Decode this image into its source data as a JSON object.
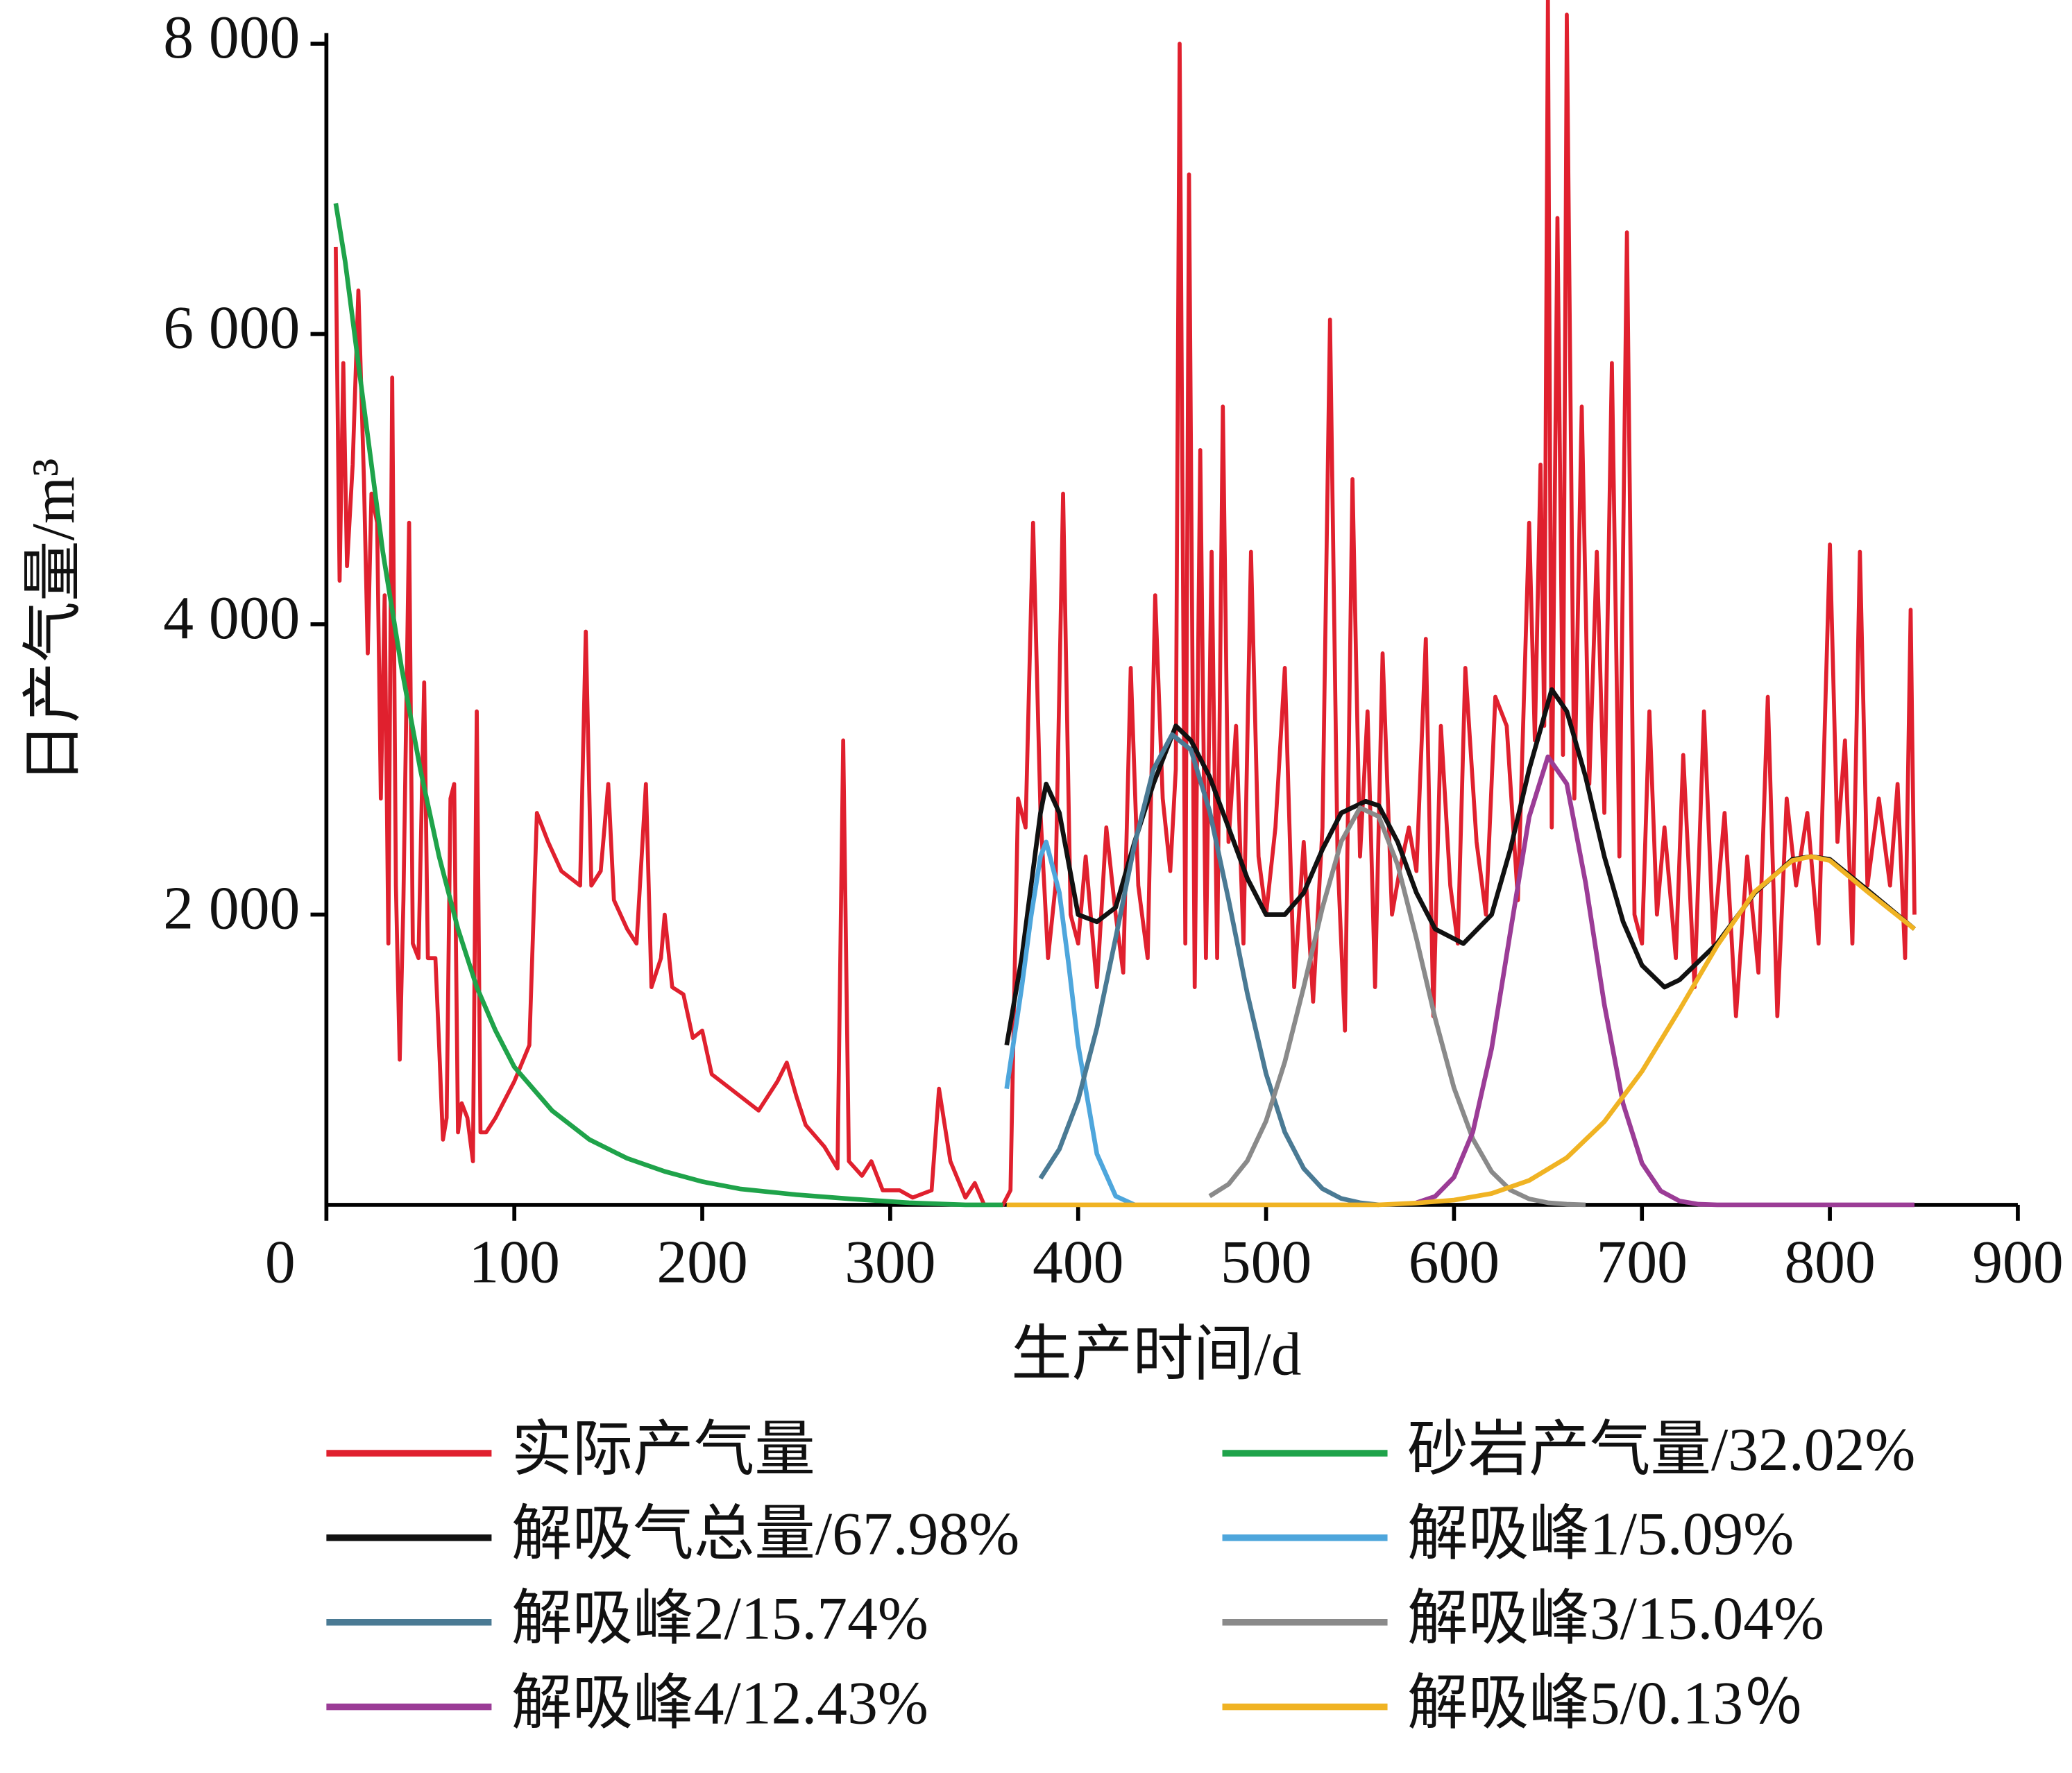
{
  "chart_data": {
    "type": "line",
    "xlabel": "生产时间/d",
    "ylabel": "日产气量/m³",
    "xlim": [
      0,
      900
    ],
    "ylim": [
      0,
      8000
    ],
    "xticks": [
      0,
      100,
      200,
      300,
      400,
      500,
      600,
      700,
      800,
      900
    ],
    "yticks": [
      {
        "value": 2000,
        "label": "2 000"
      },
      {
        "value": 4000,
        "label": "4 000"
      },
      {
        "value": 6000,
        "label": "6 000"
      },
      {
        "value": 8000,
        "label": "8 000"
      }
    ],
    "legend": "bottom",
    "series": [
      {
        "name": "实际产气量",
        "color": "#e0202e",
        "x": [
          5,
          7,
          9,
          11,
          14,
          17,
          20,
          22,
          24,
          27,
          29,
          31,
          33,
          35,
          37,
          39,
          41,
          44,
          46,
          49,
          52,
          54,
          58,
          60,
          62,
          64,
          66,
          68,
          70,
          72,
          75,
          78,
          80,
          82,
          85,
          90,
          100,
          108,
          112,
          118,
          125,
          135,
          138,
          141,
          146,
          150,
          153,
          160,
          165,
          170,
          173,
          178,
          180,
          184,
          190,
          195,
          200,
          205,
          215,
          225,
          230,
          240,
          245,
          250,
          255,
          265,
          272,
          275,
          278,
          285,
          290,
          296,
          305,
          312,
          322,
          326,
          332,
          340,
          345,
          350,
          360,
          364,
          368,
          372,
          376,
          380,
          384,
          388,
          392,
          396,
          400,
          404,
          410,
          415,
          420,
          424,
          428,
          432,
          437,
          441,
          445,
          449,
          452,
          454,
          457,
          459,
          462,
          465,
          468,
          471,
          474,
          477,
          480,
          484,
          488,
          492,
          496,
          500,
          505,
          510,
          515,
          520,
          525,
          530,
          534,
          538,
          542,
          546,
          550,
          554,
          558,
          562,
          567,
          571,
          576,
          580,
          585,
          589,
          593,
          598,
          602,
          606,
          612,
          617,
          622,
          628,
          634,
          640,
          643,
          646,
          648,
          650,
          652,
          655,
          658,
          660,
          664,
          668,
          672,
          676,
          680,
          684,
          688,
          692,
          696,
          700,
          704,
          708,
          712,
          718,
          722,
          728,
          733,
          738,
          744,
          750,
          756,
          762,
          767,
          772,
          777,
          782,
          788,
          794,
          800,
          804,
          808,
          812,
          816,
          820,
          826,
          832,
          836,
          840,
          843,
          845
        ],
        "values": [
          6600,
          4300,
          5800,
          4400,
          5100,
          6300,
          5000,
          3800,
          4900,
          4700,
          2800,
          4200,
          1800,
          5700,
          2200,
          1000,
          2100,
          4700,
          1800,
          1700,
          3600,
          1700,
          1700,
          1100,
          450,
          600,
          2800,
          2900,
          500,
          700,
          600,
          300,
          3400,
          500,
          500,
          600,
          850,
          1100,
          2700,
          2500,
          2300,
          2200,
          3950,
          2200,
          2300,
          2900,
          2100,
          1900,
          1800,
          2900,
          1500,
          1700,
          2000,
          1500,
          1450,
          1150,
          1200,
          900,
          800,
          700,
          650,
          850,
          980,
          750,
          550,
          400,
          250,
          3200,
          300,
          200,
          300,
          100,
          100,
          50,
          100,
          800,
          300,
          50,
          150,
          0,
          0,
          100,
          2800,
          2600,
          4700,
          2700,
          1700,
          2200,
          4900,
          2000,
          1800,
          2400,
          1500,
          2600,
          2000,
          1600,
          3700,
          2200,
          1700,
          4200,
          2800,
          2300,
          3000,
          8000,
          1800,
          7100,
          1500,
          5200,
          1700,
          4500,
          1700,
          5500,
          2500,
          3300,
          1800,
          4500,
          2400,
          2000,
          2600,
          3700,
          1500,
          2500,
          1400,
          2600,
          6100,
          2400,
          1200,
          5000,
          2400,
          3400,
          1500,
          3800,
          2000,
          2300,
          2600,
          2300,
          3900,
          1300,
          3300,
          2200,
          1800,
          3700,
          2500,
          2000,
          3500,
          3300,
          2100,
          4700,
          3200,
          5100,
          3300,
          8300,
          2600,
          6800,
          3100,
          8200,
          2800,
          5500,
          2900,
          4500,
          2700,
          5800,
          2400,
          6700,
          2000,
          1800,
          3400,
          2000,
          2600,
          1700,
          3100,
          1500,
          3400,
          1800,
          2700,
          1300,
          2400,
          1600,
          3500,
          1300,
          2800,
          2200,
          2700,
          1800,
          4550,
          2500,
          3200,
          1800,
          4500,
          2200,
          2800,
          2200,
          2900,
          1700,
          4100,
          2000
        ]
      },
      {
        "name": "砂岩产气量/32.02%",
        "color": "#1fa34a",
        "x": [
          5,
          10,
          20,
          30,
          40,
          50,
          60,
          70,
          80,
          90,
          100,
          120,
          140,
          160,
          180,
          200,
          220,
          250,
          280,
          310,
          340,
          360
        ],
        "values": [
          6900,
          6500,
          5500,
          4500,
          3700,
          3000,
          2400,
          1900,
          1500,
          1200,
          950,
          650,
          450,
          320,
          230,
          160,
          110,
          70,
          40,
          15,
          0,
          0
        ]
      },
      {
        "name": "解吸气总量/67.98%",
        "color": "#111111",
        "x": [
          362,
          370,
          380,
          383,
          390,
          400,
          410,
          420,
          430,
          440,
          452,
          460,
          470,
          480,
          490,
          500,
          510,
          520,
          530,
          540,
          553,
          560,
          570,
          580,
          590,
          605,
          620,
          630,
          640,
          652,
          660,
          670,
          680,
          690,
          700,
          712,
          720,
          740,
          760,
          780,
          790,
          800,
          820,
          845
        ],
        "values": [
          1100,
          1700,
          2700,
          2900,
          2700,
          2000,
          1950,
          2050,
          2500,
          2900,
          3300,
          3200,
          2950,
          2600,
          2250,
          2000,
          2000,
          2150,
          2450,
          2700,
          2780,
          2750,
          2500,
          2150,
          1900,
          1800,
          2000,
          2450,
          3000,
          3550,
          3400,
          2950,
          2400,
          1950,
          1650,
          1500,
          1550,
          1800,
          2150,
          2380,
          2400,
          2380,
          2170,
          1900
        ]
      },
      {
        "name": "解吸峰1/5.09%",
        "color": "#4ea6dc",
        "x": [
          362,
          370,
          375,
          380,
          383,
          390,
          395,
          400,
          410,
          420,
          430
        ],
        "values": [
          800,
          1500,
          1990,
          2400,
          2500,
          2150,
          1650,
          1100,
          350,
          60,
          0
        ]
      },
      {
        "name": "解吸峰2/15.74%",
        "color": "#4a7a94",
        "x": [
          380,
          390,
          400,
          410,
          420,
          430,
          440,
          450,
          460,
          470,
          480,
          490,
          500,
          510,
          520,
          530,
          540,
          550,
          560
        ],
        "values": [
          182,
          384,
          724,
          1219,
          1840,
          2483,
          3000,
          3240,
          3135,
          2713,
          2103,
          1457,
          903,
          501,
          250,
          111,
          44,
          15,
          0
        ]
      },
      {
        "name": "解吸峰3/15.04%",
        "color": "#8a8a8a",
        "x": [
          470,
          480,
          490,
          500,
          510,
          520,
          530,
          540,
          550,
          560,
          570,
          580,
          590,
          600,
          610,
          620,
          630,
          640,
          650,
          660,
          670
        ],
        "values": [
          60,
          142,
          303,
          578,
          985,
          1501,
          2049,
          2503,
          2736,
          2676,
          2343,
          1834,
          1284,
          806,
          454,
          228,
          102,
          41,
          15,
          5,
          0
        ]
      },
      {
        "name": "解吸峰4/12.43%",
        "color": "#9b3c96",
        "x": [
          580,
          590,
          600,
          610,
          620,
          630,
          640,
          650,
          660,
          670,
          680,
          690,
          700,
          710,
          720,
          730,
          740,
          845
        ],
        "values": [
          15,
          58,
          190,
          502,
          1077,
          1881,
          2673,
          3087,
          2901,
          2220,
          1380,
          697,
          286,
          96,
          26,
          5,
          0,
          0
        ]
      },
      {
        "name": "解吸峰5/0.13％",
        "color": "#f0b323",
        "x": [
          362,
          560,
          580,
          600,
          620,
          640,
          660,
          680,
          700,
          720,
          740,
          760,
          780,
          790,
          800,
          820,
          845
        ],
        "values": [
          0,
          0,
          13,
          33,
          78,
          168,
          325,
          573,
          920,
          1344,
          1785,
          2158,
          2372,
          2400,
          2372,
          2158,
          1900
        ]
      }
    ]
  }
}
